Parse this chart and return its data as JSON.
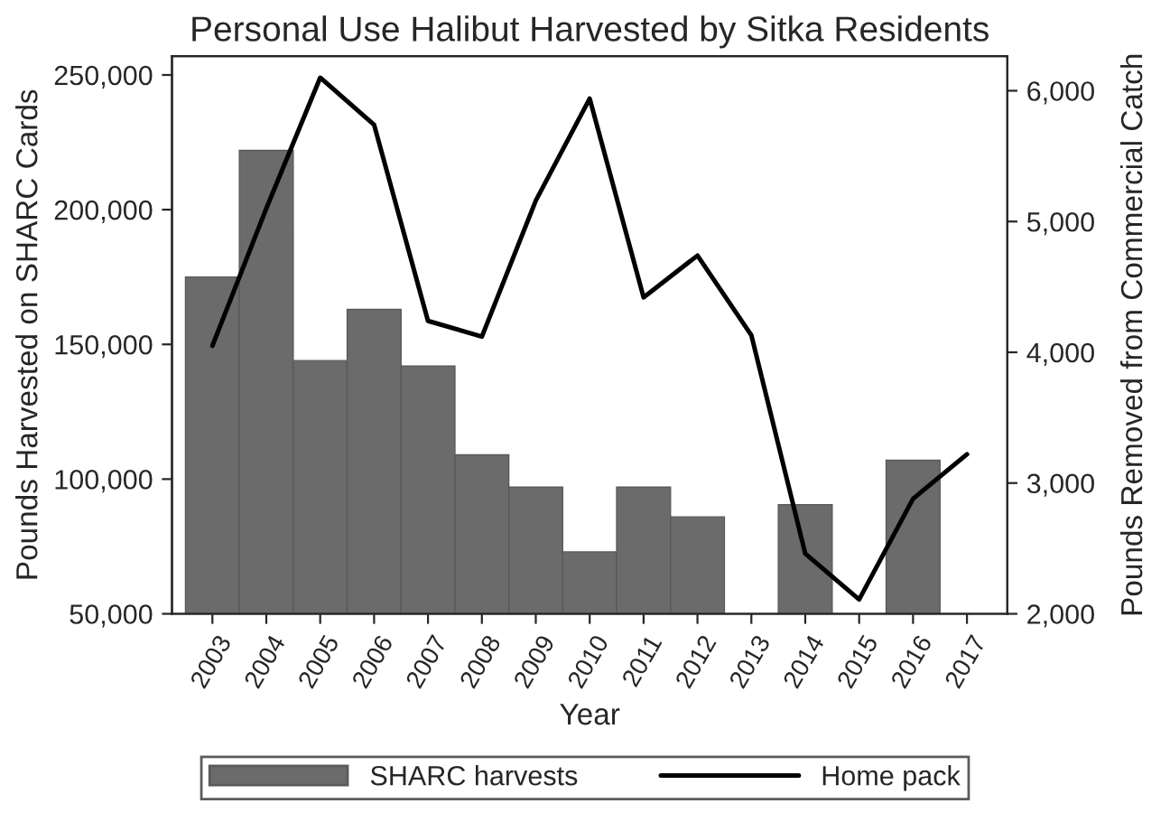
{
  "chart_data": {
    "type": "bar",
    "title": "Personal Use Halibut Harvested by Sitka Residents",
    "xlabel": "Year",
    "ylabel": "Pounds Harvested on SHARC Cards",
    "y2label": "Pounds Removed from Commercial Catch",
    "categories": [
      "2003",
      "2004",
      "2005",
      "2006",
      "2007",
      "2008",
      "2009",
      "2010",
      "2011",
      "2012",
      "2013",
      "2014",
      "2015",
      "2016",
      "2017"
    ],
    "series": [
      {
        "name": "SHARC harvests",
        "color": "#6b6b6b",
        "values": [
          175000,
          222000,
          144000,
          163000,
          142000,
          109000,
          97000,
          73000,
          97000,
          86000,
          null,
          90500,
          null,
          107000,
          null
        ]
      },
      {
        "name": "Home pack",
        "type": "line",
        "axis": "y2",
        "color": "#000000",
        "values": [
          4050,
          5100,
          6100,
          5740,
          4240,
          4120,
          5160,
          5940,
          4420,
          4740,
          4130,
          2460,
          2110,
          2880,
          3220
        ]
      }
    ],
    "ylim": [
      50000,
      257000
    ],
    "yticks": [
      {
        "value": 50000,
        "label": "50,000"
      },
      {
        "value": 100000,
        "label": "100,000"
      },
      {
        "value": 150000,
        "label": "150,000"
      },
      {
        "value": 200000,
        "label": "200,000"
      },
      {
        "value": 250000,
        "label": "250,000"
      }
    ],
    "y2lim": [
      2000,
      6265
    ],
    "y2ticks": [
      {
        "value": 2000,
        "label": "2,000"
      },
      {
        "value": 3000,
        "label": "3,000"
      },
      {
        "value": 4000,
        "label": "4,000"
      },
      {
        "value": 5000,
        "label": "5,000"
      },
      {
        "value": 6000,
        "label": "6,000"
      }
    ],
    "grid": false,
    "legend": "bottom",
    "marker": "none",
    "line_style": "solid"
  }
}
